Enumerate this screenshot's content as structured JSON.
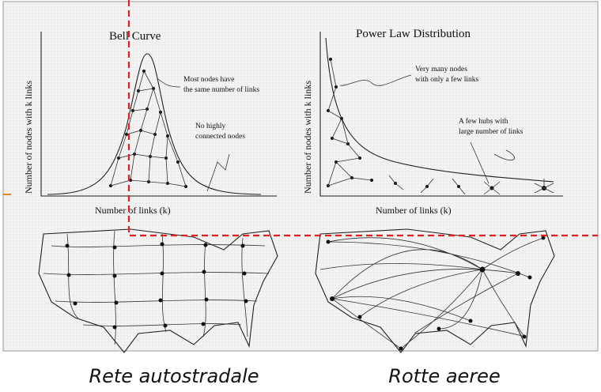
{
  "panels": [
    {
      "title": "Bell Curve",
      "y_label": "Number of nodes with k links",
      "x_label": "Number of links (k)",
      "annotations": [
        [
          "Most nodes have",
          "the same number of links"
        ],
        [
          "No highly",
          "connected nodes"
        ]
      ]
    },
    {
      "title": "Power Law Distribution",
      "y_label": "Number of nodes with k links",
      "x_label": "Number of links (k)",
      "annotations": [
        [
          "Very many nodes",
          "with only a few links"
        ],
        [
          "A few hubs with",
          "large number of links"
        ]
      ]
    }
  ],
  "maps": [
    {
      "caption": "Rete autostradale"
    },
    {
      "caption": "Rotte aeree"
    }
  ]
}
